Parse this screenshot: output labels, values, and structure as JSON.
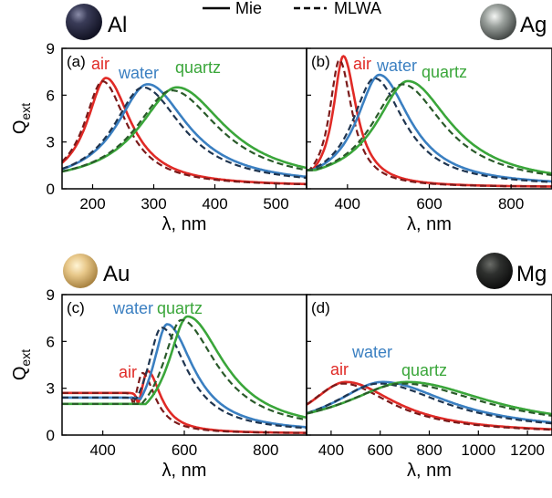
{
  "legend": {
    "solid_label": "Mie",
    "dashed_label": "MLWA"
  },
  "colors": {
    "air": "#e02a26",
    "water": "#3a7fc1",
    "quartz": "#3aa63a",
    "mlwa_dark": "#1a2a40",
    "air_dash": "#7a1a1a",
    "water_dash": "#1f3550",
    "quartz_dash": "#2a5a2a"
  },
  "chart_data": [
    {
      "type": "line",
      "panel": "(a)",
      "metal": "Al",
      "ball_icon": "aluminum-sphere-icon",
      "xlabel": "λ, nm",
      "ylabel_main": "Q",
      "ylabel_sub": "ext",
      "xlim": [
        150,
        550
      ],
      "ylim": [
        0,
        9
      ],
      "xticks": [
        200,
        300,
        400,
        500
      ],
      "yticks": [
        0,
        3,
        6,
        9
      ],
      "series": [
        {
          "name": "air",
          "peak_x": 222,
          "peak_y": 7.1,
          "hwhm": 38,
          "skew": 1.3,
          "base": 0.15,
          "left_tail": 0.0
        },
        {
          "name": "water",
          "peak_x": 290,
          "peak_y": 6.7,
          "hwhm": 62,
          "skew": 1.3,
          "base": 0.2,
          "left_tail": 0.0
        },
        {
          "name": "quartz",
          "peak_x": 338,
          "peak_y": 6.5,
          "hwhm": 75,
          "skew": 1.3,
          "base": 0.25,
          "left_tail": 0.0
        }
      ]
    },
    {
      "type": "line",
      "panel": "(b)",
      "metal": "Ag",
      "ball_icon": "silver-sphere-icon",
      "xlabel": "λ, nm",
      "xlim": [
        300,
        900
      ],
      "ylim": [
        0,
        9
      ],
      "xticks": [
        400,
        600,
        800
      ],
      "yticks": [
        0,
        3,
        6,
        9
      ],
      "series": [
        {
          "name": "air",
          "peak_x": 390,
          "peak_y": 8.5,
          "hwhm": 30,
          "skew": 1.3,
          "base": 0.1,
          "left_tail": 1.2
        },
        {
          "name": "water",
          "peak_x": 478,
          "peak_y": 7.3,
          "hwhm": 68,
          "skew": 1.35,
          "base": 0.15,
          "left_tail": 1.2
        },
        {
          "name": "quartz",
          "peak_x": 548,
          "peak_y": 6.9,
          "hwhm": 95,
          "skew": 1.35,
          "base": 0.2,
          "left_tail": 1.2
        }
      ]
    },
    {
      "type": "line",
      "panel": "(c)",
      "metal": "Au",
      "ball_icon": "gold-sphere-icon",
      "xlabel": "λ, nm",
      "ylabel_main": "Q",
      "ylabel_sub": "ext",
      "xlim": [
        300,
        900
      ],
      "ylim": [
        0,
        9
      ],
      "xticks": [
        400,
        600,
        800
      ],
      "yticks": [
        0,
        3,
        6,
        9
      ],
      "series": [
        {
          "name": "air",
          "peak_x": 510,
          "peak_y": 4.1,
          "hwhm": 22,
          "skew": 1.8,
          "base": 0.1,
          "left_tail": 2.7
        },
        {
          "name": "water",
          "peak_x": 558,
          "peak_y": 7.1,
          "hwhm": 44,
          "skew": 1.8,
          "base": 0.15,
          "left_tail": 2.4
        },
        {
          "name": "quartz",
          "peak_x": 608,
          "peak_y": 7.6,
          "hwhm": 58,
          "skew": 1.9,
          "base": 0.2,
          "left_tail": 2.0
        }
      ]
    },
    {
      "type": "line",
      "panel": "(d)",
      "metal": "Mg",
      "ball_icon": "magnesium-sphere-icon",
      "xlabel": "λ, nm",
      "xlim": [
        300,
        1300
      ],
      "ylim": [
        0,
        9
      ],
      "xticks": [
        400,
        600,
        800,
        1000,
        1200
      ],
      "yticks": [
        0,
        3,
        6,
        9
      ],
      "series": [
        {
          "name": "air",
          "peak_x": 460,
          "peak_y": 3.4,
          "hwhm": 180,
          "skew": 1.4,
          "base": 0.1,
          "left_tail": 0.8
        },
        {
          "name": "water",
          "peak_x": 610,
          "peak_y": 3.4,
          "hwhm": 240,
          "skew": 1.4,
          "base": 0.2,
          "left_tail": 0.8
        },
        {
          "name": "quartz",
          "peak_x": 710,
          "peak_y": 3.4,
          "hwhm": 300,
          "skew": 1.4,
          "base": 0.3,
          "left_tail": 0.8
        }
      ]
    }
  ]
}
